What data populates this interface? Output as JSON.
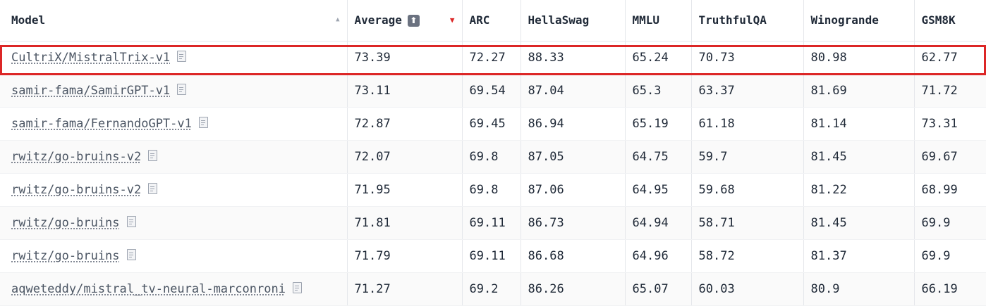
{
  "columns": {
    "model": "Model",
    "average": "Average",
    "average_badge": "⬆",
    "arc": "ARC",
    "hellaswag": "HellaSwag",
    "mmlu": "MMLU",
    "truthfulqa": "TruthfulQA",
    "winogrande": "Winogrande",
    "gsm8k": "GSM8K"
  },
  "icons": {
    "sort": "sort-triangle-icon",
    "sort_desc": "sort-descending-icon",
    "doc": "model-card-icon",
    "sort_glyph": "▲",
    "sort_desc_glyph": "▼"
  },
  "colors": {
    "highlight": "#dc2626",
    "sort_active": "#dc2626"
  },
  "rows": [
    {
      "model": "CultriX/MistralTrix-v1",
      "average": "73.39",
      "arc": "72.27",
      "hellaswag": "88.33",
      "mmlu": "65.24",
      "truthfulqa": "70.73",
      "winogrande": "80.98",
      "gsm8k": "62.77"
    },
    {
      "model": "samir-fama/SamirGPT-v1",
      "average": "73.11",
      "arc": "69.54",
      "hellaswag": "87.04",
      "mmlu": "65.3",
      "truthfulqa": "63.37",
      "winogrande": "81.69",
      "gsm8k": "71.72"
    },
    {
      "model": "samir-fama/FernandoGPT-v1",
      "average": "72.87",
      "arc": "69.45",
      "hellaswag": "86.94",
      "mmlu": "65.19",
      "truthfulqa": "61.18",
      "winogrande": "81.14",
      "gsm8k": "73.31"
    },
    {
      "model": "rwitz/go-bruins-v2",
      "average": "72.07",
      "arc": "69.8",
      "hellaswag": "87.05",
      "mmlu": "64.75",
      "truthfulqa": "59.7",
      "winogrande": "81.45",
      "gsm8k": "69.67"
    },
    {
      "model": "rwitz/go-bruins-v2",
      "average": "71.95",
      "arc": "69.8",
      "hellaswag": "87.06",
      "mmlu": "64.95",
      "truthfulqa": "59.68",
      "winogrande": "81.22",
      "gsm8k": "68.99"
    },
    {
      "model": "rwitz/go-bruins",
      "average": "71.81",
      "arc": "69.11",
      "hellaswag": "86.73",
      "mmlu": "64.94",
      "truthfulqa": "58.71",
      "winogrande": "81.45",
      "gsm8k": "69.9"
    },
    {
      "model": "rwitz/go-bruins",
      "average": "71.79",
      "arc": "69.11",
      "hellaswag": "86.68",
      "mmlu": "64.96",
      "truthfulqa": "58.72",
      "winogrande": "81.37",
      "gsm8k": "69.9"
    },
    {
      "model": "aqweteddy/mistral_tv-neural-marconroni",
      "average": "71.27",
      "arc": "69.2",
      "hellaswag": "86.26",
      "mmlu": "65.07",
      "truthfulqa": "60.03",
      "winogrande": "80.9",
      "gsm8k": "66.19"
    }
  ]
}
